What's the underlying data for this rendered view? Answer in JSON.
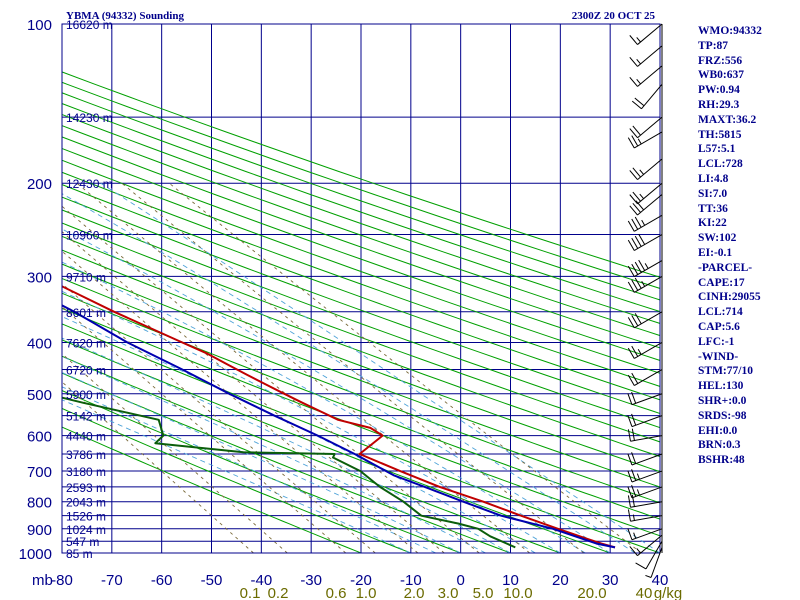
{
  "header": {
    "station": "YBMA (94332) Sounding",
    "valid_time": "2300Z 20 OCT 25"
  },
  "indices": [
    "WMO:94332",
    "TP:87",
    "FRZ:556",
    "WB0:637",
    "PW:0.94",
    "RH:29.3",
    "MAXT:36.2",
    "TH:5815",
    "L57:5.1",
    "LCL:728",
    "LI:4.8",
    "SI:7.0",
    "TT:36",
    "KI:22",
    "SW:102",
    "EI:-0.1",
    "-PARCEL-",
    "CAPE:17",
    "CINH:29055",
    "LCL:714",
    "CAP:5.6",
    "LFC:-1",
    "-WIND-",
    "STM:77/10",
    "HEL:130",
    "SHR+:0.0",
    "SRDS:-98",
    "EHI:0.0",
    "BRN:0.3",
    "BSHR:48"
  ],
  "colors": {
    "isobar_grid": "#00008b",
    "isotherm_grid": "#00008b",
    "dry_adiabat": "#00a000",
    "moist_adiabat": "#4fa3d8",
    "mixing_ratio": "#7a6a3a",
    "temperature": "#c00000",
    "dewpoint": "#0b5e0b",
    "parcel": "#0000b0",
    "axis_text": "#00008b",
    "mixing_text": "#6b6b00"
  },
  "chart_data": {
    "type": "line",
    "title": "YBMA (94332) Sounding",
    "xlabel": "",
    "ylabel": "mb",
    "xlim": [
      -80,
      40
    ],
    "ylim": [
      1000,
      100
    ],
    "y_scale": "log",
    "x_ticks": [
      -80,
      -70,
      -60,
      -50,
      -40,
      -30,
      -20,
      -10,
      0,
      10,
      20,
      30,
      40
    ],
    "x_tick_labels": [
      "-80",
      "-70",
      "-60",
      "-50",
      "-40",
      "-30",
      "-20",
      "-10",
      "0",
      "10",
      "20",
      "30",
      "40"
    ],
    "x_origin_label": "mb",
    "pressure_levels": [
      1000,
      900,
      800,
      700,
      600,
      500,
      400,
      300,
      200,
      100
    ],
    "pressure_labels": [
      "1000",
      "900",
      "800",
      "700",
      "600",
      "500",
      "400",
      "300",
      "200",
      "100"
    ],
    "height_labels": [
      {
        "p": 100,
        "text": "16620 m"
      },
      {
        "p": 150,
        "text": "14230 m"
      },
      {
        "p": 200,
        "text": "12430 m"
      },
      {
        "p": 250,
        "text": "10960 m"
      },
      {
        "p": 300,
        "text": "9710 m"
      },
      {
        "p": 350,
        "text": "8601 m"
      },
      {
        "p": 400,
        "text": "7620 m"
      },
      {
        "p": 450,
        "text": "6720 m"
      },
      {
        "p": 500,
        "text": "5900 m"
      },
      {
        "p": 550,
        "text": "5142 m"
      },
      {
        "p": 600,
        "text": "4440 m"
      },
      {
        "p": 650,
        "text": "3786 m"
      },
      {
        "p": 700,
        "text": "3180 m"
      },
      {
        "p": 750,
        "text": "2593 m"
      },
      {
        "p": 800,
        "text": "2043 m"
      },
      {
        "p": 850,
        "text": "1526 m"
      },
      {
        "p": 900,
        "text": "1024 m"
      },
      {
        "p": 950,
        "text": "547 m"
      },
      {
        "p": 1000,
        "text": "85 m"
      }
    ],
    "mixing_ratio_labels": [
      "0.1",
      "0.2",
      "0.6",
      "1.0",
      "2.0",
      "3.0",
      "5.0",
      "10.0",
      "20.0",
      "40",
      "g/kg"
    ],
    "series": [
      {
        "key": "temperature",
        "points": [
          [
            976,
            32
          ],
          [
            960,
            30
          ],
          [
            940,
            28
          ],
          [
            920,
            26
          ],
          [
            900,
            24
          ],
          [
            850,
            19
          ],
          [
            800,
            14
          ],
          [
            750,
            8
          ],
          [
            700,
            3
          ],
          [
            650,
            -2
          ],
          [
            600,
            6
          ],
          [
            580,
            5
          ],
          [
            560,
            0
          ],
          [
            540,
            -2
          ],
          [
            520,
            -4
          ],
          [
            500,
            -6
          ],
          [
            480,
            -8
          ],
          [
            460,
            -10
          ],
          [
            440,
            -12
          ],
          [
            420,
            -14
          ],
          [
            400,
            -17
          ],
          [
            350,
            -25
          ],
          [
            300,
            -33
          ],
          [
            280,
            -35
          ],
          [
            260,
            -40
          ],
          [
            240,
            -44
          ],
          [
            220,
            -48
          ],
          [
            210,
            -51
          ],
          [
            200,
            -53
          ],
          [
            180,
            -58
          ],
          [
            160,
            -65
          ],
          [
            150,
            -70
          ],
          [
            140,
            -72
          ],
          [
            120,
            -76
          ],
          [
            100,
            -83
          ]
        ]
      },
      {
        "key": "dewpoint",
        "points": [
          [
            976,
            12
          ],
          [
            960,
            11
          ],
          [
            930,
            9
          ],
          [
            900,
            8
          ],
          [
            880,
            5
          ],
          [
            850,
            -1
          ],
          [
            800,
            -2
          ],
          [
            750,
            -4
          ],
          [
            700,
            -5
          ],
          [
            660,
            -8
          ],
          [
            650,
            -7
          ],
          [
            645,
            -25
          ],
          [
            620,
            -41
          ],
          [
            600,
            -38
          ],
          [
            560,
            -36
          ],
          [
            520,
            -48
          ],
          [
            460,
            -66
          ],
          [
            440,
            -62
          ],
          [
            400,
            -58
          ],
          [
            360,
            -65
          ],
          [
            300,
            -53
          ],
          [
            290,
            -56
          ],
          [
            270,
            -70
          ],
          [
            260,
            -72
          ],
          [
            250,
            -72
          ],
          [
            230,
            -80
          ],
          [
            220,
            -84
          ],
          [
            210,
            -87
          ],
          [
            200,
            -88
          ],
          [
            180,
            -92
          ],
          [
            170,
            -98
          ],
          [
            160,
            -100
          ],
          [
            150,
            -104
          ],
          [
            140,
            -106
          ]
        ]
      },
      {
        "key": "parcel",
        "points": [
          [
            976,
            32
          ],
          [
            960,
            29
          ],
          [
            900,
            23
          ],
          [
            850,
            15
          ],
          [
            800,
            10
          ],
          [
            750,
            5
          ],
          [
            714,
            1
          ],
          [
            650,
            -3
          ],
          [
            600,
            -7
          ],
          [
            550,
            -12
          ],
          [
            500,
            -17
          ],
          [
            450,
            -22
          ],
          [
            400,
            -28
          ],
          [
            350,
            -33
          ],
          [
            300,
            -40
          ],
          [
            250,
            -48
          ],
          [
            200,
            -56
          ],
          [
            150,
            -67
          ],
          [
            140,
            -72
          ]
        ]
      }
    ],
    "wind_barbs": [
      {
        "p": 976,
        "dir": 200,
        "spd": 5
      },
      {
        "p": 950,
        "dir": 210,
        "spd": 10
      },
      {
        "p": 925,
        "dir": 230,
        "spd": 15
      },
      {
        "p": 900,
        "dir": 250,
        "spd": 15
      },
      {
        "p": 850,
        "dir": 260,
        "spd": 15
      },
      {
        "p": 800,
        "dir": 260,
        "spd": 20
      },
      {
        "p": 750,
        "dir": 250,
        "spd": 25
      },
      {
        "p": 700,
        "dir": 250,
        "spd": 25
      },
      {
        "p": 650,
        "dir": 250,
        "spd": 20
      },
      {
        "p": 600,
        "dir": 260,
        "spd": 20
      },
      {
        "p": 550,
        "dir": 250,
        "spd": 20
      },
      {
        "p": 500,
        "dir": 250,
        "spd": 20
      },
      {
        "p": 450,
        "dir": 240,
        "spd": 20
      },
      {
        "p": 400,
        "dir": 240,
        "spd": 25
      },
      {
        "p": 350,
        "dir": 240,
        "spd": 30
      },
      {
        "p": 300,
        "dir": 240,
        "spd": 35
      },
      {
        "p": 280,
        "dir": 240,
        "spd": 45
      },
      {
        "p": 250,
        "dir": 240,
        "spd": 40
      },
      {
        "p": 230,
        "dir": 240,
        "spd": 35
      },
      {
        "p": 210,
        "dir": 230,
        "spd": 30
      },
      {
        "p": 200,
        "dir": 230,
        "spd": 25
      },
      {
        "p": 180,
        "dir": 230,
        "spd": 25
      },
      {
        "p": 160,
        "dir": 240,
        "spd": 25
      },
      {
        "p": 150,
        "dir": 230,
        "spd": 20
      },
      {
        "p": 130,
        "dir": 220,
        "spd": 20
      },
      {
        "p": 120,
        "dir": 230,
        "spd": 15
      },
      {
        "p": 110,
        "dir": 230,
        "spd": 15
      },
      {
        "p": 100,
        "dir": 230,
        "spd": 15
      }
    ]
  }
}
